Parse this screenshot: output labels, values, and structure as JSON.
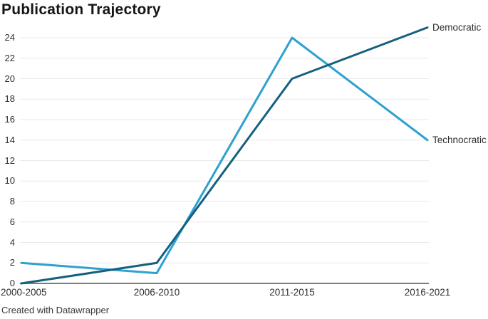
{
  "header": {
    "title": "Publication Trajectory"
  },
  "footer": {
    "attribution": "Created with Datawrapper"
  },
  "colors": {
    "grid": "#e9e9e9",
    "axis_baseline": "#7d7d7d",
    "tick_text": "#2e2e2e",
    "title_text": "#161616"
  },
  "chart_data": {
    "type": "line",
    "title": "Publication Trajectory",
    "categories": [
      "2000-2005",
      "2006-2010",
      "2011-2015",
      "2016-2021"
    ],
    "series": [
      {
        "name": "Democratic",
        "color": "#15607f",
        "values": [
          0,
          2,
          20,
          25
        ]
      },
      {
        "name": "Technocratic",
        "color": "#2da1cf",
        "values": [
          2,
          1,
          24,
          14
        ]
      }
    ],
    "yticks": [
      0,
      2,
      4,
      6,
      8,
      10,
      12,
      14,
      16,
      18,
      20,
      22,
      24
    ],
    "ylim": [
      0,
      25
    ],
    "xlabel": "",
    "ylabel": "",
    "grid": true,
    "legend_position": "line-end-labels-right"
  }
}
